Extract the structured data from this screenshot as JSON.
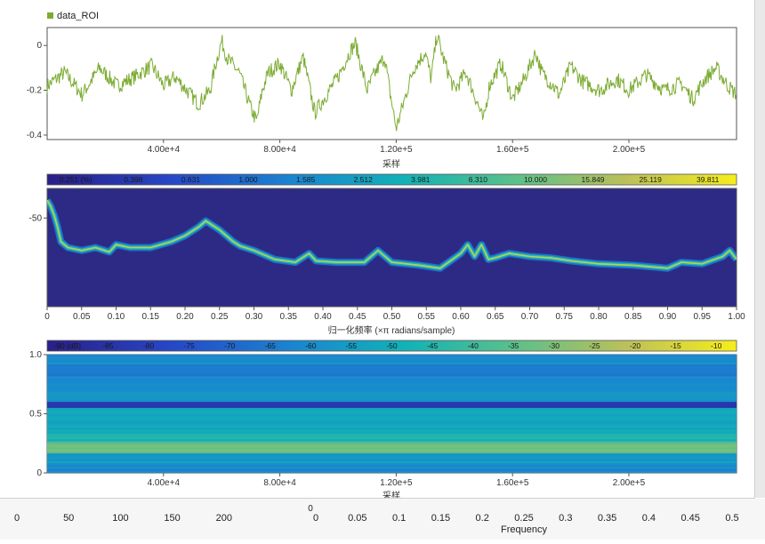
{
  "chart_data": [
    {
      "type": "line",
      "legend": {
        "label": "data_ROI",
        "color": "#7cac33",
        "position": "top-left"
      },
      "xlabel": "采样",
      "x_ticks": [
        "4.00e+4",
        "8.00e+4",
        "1.20e+5",
        "1.60e+5",
        "2.00e+5"
      ],
      "x_tick_values": [
        40000,
        80000,
        120000,
        160000,
        200000
      ],
      "xlim": [
        0,
        237000
      ],
      "ylim": [
        -0.42,
        0.08
      ],
      "y_ticks": [
        "0",
        "-0.2",
        "-0.4"
      ],
      "y_tick_values": [
        0,
        -0.2,
        -0.4
      ],
      "series": [
        {
          "color": "#7cac33",
          "x": [
            0,
            6000,
            12000,
            18000,
            24000,
            30000,
            36000,
            40000,
            44000,
            48000,
            52000,
            56000,
            58000,
            60000,
            62000,
            66000,
            70000,
            72000,
            74000,
            76000,
            80000,
            84000,
            88000,
            92000,
            94000,
            100000,
            104000,
            106000,
            110000,
            112000,
            116000,
            118000,
            120000,
            122000,
            126000,
            130000,
            132000,
            134000,
            136000,
            140000,
            144000,
            148000,
            150000,
            152000,
            156000,
            160000,
            164000,
            168000,
            170000,
            174000,
            176000,
            180000,
            184000,
            190000,
            196000,
            200000,
            206000,
            212000,
            218000,
            222000,
            226000,
            230000,
            234000,
            237000
          ],
          "y": [
            -0.18,
            -0.12,
            -0.22,
            -0.1,
            -0.18,
            -0.14,
            -0.09,
            -0.18,
            -0.14,
            -0.2,
            -0.26,
            -0.2,
            -0.08,
            0.02,
            -0.06,
            -0.12,
            -0.28,
            -0.34,
            -0.2,
            -0.12,
            -0.08,
            -0.2,
            -0.05,
            -0.3,
            -0.26,
            -0.14,
            -0.03,
            0.01,
            -0.2,
            -0.14,
            -0.05,
            -0.22,
            -0.37,
            -0.28,
            -0.1,
            -0.03,
            -0.15,
            0.05,
            -0.05,
            -0.2,
            -0.12,
            -0.26,
            -0.34,
            -0.18,
            -0.08,
            -0.24,
            -0.15,
            -0.03,
            -0.12,
            -0.18,
            -0.22,
            -0.09,
            -0.16,
            -0.2,
            -0.15,
            -0.2,
            -0.13,
            -0.2,
            -0.17,
            -0.24,
            -0.15,
            -0.1,
            -0.18,
            -0.22
          ]
        }
      ]
    },
    {
      "type": "heatmap",
      "colorbar": {
        "labels": [
          "0.251 (%)",
          "0.398",
          "0.631",
          "1.000",
          "1.585",
          "2.512",
          "3.981",
          "6.310",
          "10.000",
          "15.849",
          "25.119",
          "39.811"
        ]
      },
      "xlabel": "归一化频率 (×π radians/sample)",
      "x_ticks": [
        "0",
        "0.05",
        "0.10",
        "0.15",
        "0.20",
        "0.25",
        "0.30",
        "0.35",
        "0.40",
        "0.45",
        "0.50",
        "0.55",
        "0.60",
        "0.65",
        "0.70",
        "0.75",
        "0.80",
        "0.85",
        "0.90",
        "0.95",
        "1.00"
      ],
      "xlim": [
        0,
        1
      ],
      "ylim": [
        -110,
        -30
      ],
      "y_ticks": [
        "-50"
      ],
      "y_tick_values": [
        -50
      ],
      "series": [
        {
          "x": [
            0,
            0.005,
            0.01,
            0.015,
            0.02,
            0.03,
            0.05,
            0.07,
            0.09,
            0.1,
            0.12,
            0.15,
            0.18,
            0.2,
            0.22,
            0.23,
            0.25,
            0.27,
            0.28,
            0.3,
            0.33,
            0.36,
            0.38,
            0.39,
            0.42,
            0.46,
            0.48,
            0.5,
            0.54,
            0.57,
            0.6,
            0.61,
            0.62,
            0.63,
            0.64,
            0.65,
            0.67,
            0.7,
            0.73,
            0.76,
            0.8,
            0.85,
            0.9,
            0.92,
            0.95,
            0.98,
            0.99,
            1.0
          ],
          "y": [
            -38,
            -42,
            -48,
            -56,
            -66,
            -70,
            -72,
            -70,
            -73,
            -68,
            -70,
            -70,
            -66,
            -62,
            -56,
            -52,
            -58,
            -66,
            -69,
            -72,
            -78,
            -80,
            -74,
            -79,
            -80,
            -80,
            -72,
            -80,
            -82,
            -84,
            -74,
            -68,
            -76,
            -68,
            -78,
            -77,
            -74,
            -76,
            -77,
            -79,
            -81,
            -82,
            -84,
            -80,
            -81,
            -76,
            -72,
            -78
          ]
        }
      ]
    },
    {
      "type": "heatmap",
      "colorbar": {
        "labels": [
          "-90 (dB)",
          "-85",
          "-80",
          "-75",
          "-70",
          "-65",
          "-60",
          "-55",
          "-50",
          "-45",
          "-40",
          "-35",
          "-30",
          "-25",
          "-20",
          "-15",
          "-10"
        ]
      },
      "xlabel": "采样",
      "x_ticks": [
        "4.00e+4",
        "8.00e+4",
        "1.20e+5",
        "1.60e+5",
        "2.00e+5"
      ],
      "x_tick_values": [
        40000,
        80000,
        120000,
        160000,
        200000
      ],
      "xlim": [
        0,
        237000
      ],
      "ylim": [
        0,
        1
      ],
      "y_ticks": [
        "1.0",
        "0.5",
        "0"
      ],
      "y_tick_values": [
        1.0,
        0.5,
        0
      ],
      "bands": [
        {
          "y": 0.97,
          "level": 0.38
        },
        {
          "y": 0.86,
          "level": 0.32
        },
        {
          "y": 0.78,
          "level": 0.36
        },
        {
          "y": 0.64,
          "level": 0.4
        },
        {
          "y": 0.57,
          "level": 0.1
        },
        {
          "y": 0.52,
          "level": 0.48
        },
        {
          "y": 0.4,
          "level": 0.46
        },
        {
          "y": 0.3,
          "level": 0.52
        },
        {
          "y": 0.22,
          "level": 0.68
        },
        {
          "y": 0.12,
          "level": 0.42
        },
        {
          "y": 0.03,
          "level": 0.36
        }
      ]
    }
  ],
  "bottom_axes": [
    {
      "ticks": [
        "0",
        "50",
        "100",
        "150",
        "200"
      ]
    },
    {
      "ticks": [
        "0",
        "0.05",
        "0.1",
        "0.15",
        "0.2",
        "0.25",
        "0.3",
        "0.35",
        "0.4",
        "0.45",
        "0.5"
      ],
      "label": "Frequency",
      "corner_label": "0"
    }
  ]
}
